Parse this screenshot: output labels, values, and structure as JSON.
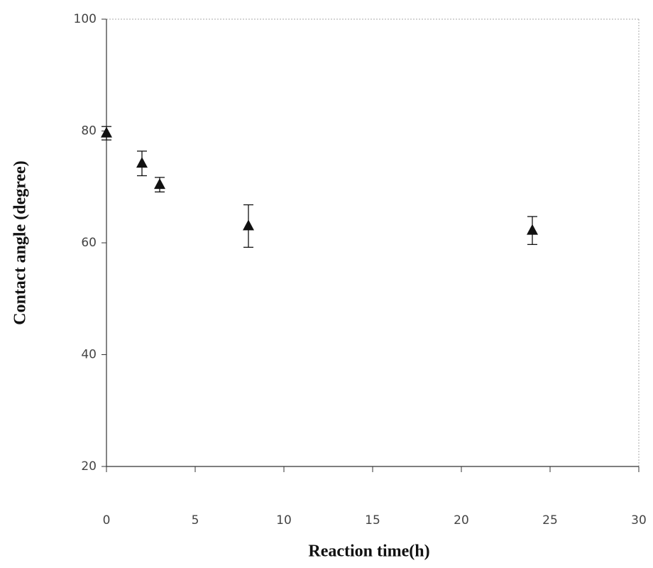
{
  "chart_data": {
    "type": "scatter",
    "x_label": "Reaction time(h)",
    "y_label": "Contact angle (degree)",
    "series": [
      {
        "color": "#111111",
        "x": [
          0,
          2,
          3,
          8,
          24
        ],
        "values": [
          79.6,
          74.2,
          70.4,
          63,
          62.2
        ],
        "errors": [
          1.2,
          2.2,
          1.3,
          3.8,
          2.5
        ]
      }
    ],
    "xlim": [
      0,
      30
    ],
    "xticks": [
      0,
      5,
      10,
      15,
      20,
      25,
      30
    ],
    "ylim": [
      20,
      100
    ],
    "yticks": [
      20,
      40,
      60,
      80,
      100
    ],
    "grid": false
  }
}
